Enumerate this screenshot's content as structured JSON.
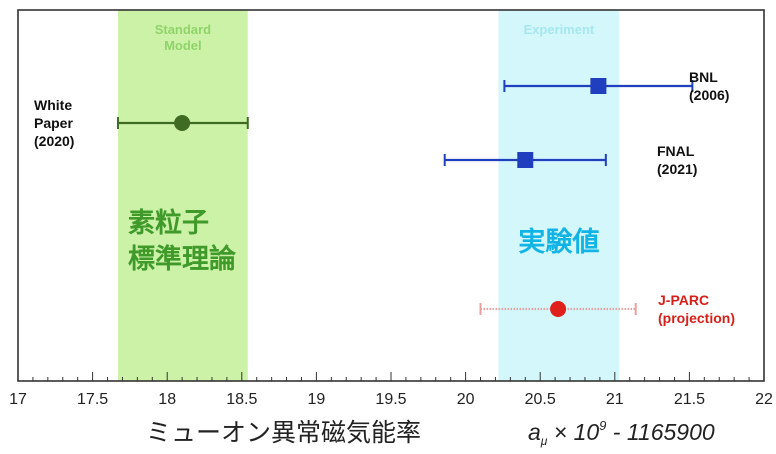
{
  "chart_data": {
    "type": "scatter",
    "title": "",
    "xlim": [
      17,
      22
    ],
    "x_ticks": [
      "17",
      "17.5",
      "18",
      "18.5",
      "19",
      "19.5",
      "20",
      "20.5",
      "21",
      "21.5",
      "22"
    ],
    "x_tick_values": [
      17,
      17.5,
      18,
      18.5,
      19,
      19.5,
      20,
      20.5,
      21,
      21.5,
      22
    ],
    "xlabel_jp": "ミューオン異常磁気能率",
    "xlabel_formula": {
      "symbol": "a",
      "subscript": "μ",
      "times": " × 10",
      "exponent": "9",
      "offset": " - 1165900"
    },
    "bands": [
      {
        "name": "Standard Model",
        "label_lines": [
          "Standard",
          "Model"
        ],
        "jp_lines": [
          "素粒子",
          "標準理論"
        ],
        "x_range": [
          17.67,
          18.54
        ],
        "fill": "#ccf2a8",
        "label_color": "#8fd46a",
        "jp_color": "#3f9a2a"
      },
      {
        "name": "Experiment",
        "label_lines": [
          "Experiment"
        ],
        "jp_lines": [
          "実験値"
        ],
        "x_range": [
          20.22,
          21.03
        ],
        "fill": "#d4f7fb",
        "label_color": "#a6e6ee",
        "jp_color": "#12b4e6"
      }
    ],
    "series": [
      {
        "label_lines": [
          "White",
          "Paper",
          "(2020)"
        ],
        "value": 18.1,
        "err_low": 17.67,
        "err_high": 18.54,
        "marker": "circle",
        "color": "#3f6b22",
        "label_side": "left",
        "label_color": "#111111"
      },
      {
        "label_lines": [
          "BNL",
          "(2006)"
        ],
        "value": 20.89,
        "err_low": 20.26,
        "err_high": 21.52,
        "marker": "square",
        "color": "#1f3fbf",
        "label_side": "right",
        "label_color": "#111111"
      },
      {
        "label_lines": [
          "FNAL",
          "(2021)"
        ],
        "value": 20.4,
        "err_low": 19.86,
        "err_high": 20.94,
        "marker": "square",
        "color": "#1f3fbf",
        "label_side": "right",
        "label_color": "#111111"
      },
      {
        "label_lines": [
          "J-PARC",
          "(projection)"
        ],
        "value": 20.62,
        "err_low": 20.1,
        "err_high": 21.14,
        "marker": "circle",
        "color": "#e0201a",
        "err_color": "#e8a0a0",
        "label_side": "right",
        "label_color": "#d8201a"
      }
    ]
  }
}
